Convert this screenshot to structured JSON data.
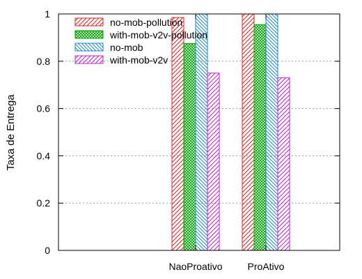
{
  "chart_data": {
    "type": "bar",
    "title": "",
    "xlabel": "",
    "ylabel": "Taxa de Entrega",
    "ylim": [
      0,
      1
    ],
    "yticks": [
      "0",
      "0.2",
      "0.4",
      "0.6",
      "0.8",
      "1"
    ],
    "categories": [
      "NaoProativo",
      "ProAtivo"
    ],
    "grid": true,
    "legend_position": "top-left",
    "series": [
      {
        "name": "no-mob-pollution",
        "values": [
          0.985,
          1.0
        ],
        "color": "#e02020",
        "pattern": "hatch-forward"
      },
      {
        "name": "with-mob-v2v-pollution",
        "values": [
          0.875,
          0.955
        ],
        "color": "#00a000",
        "pattern": "crosshatch"
      },
      {
        "name": "no-mob",
        "values": [
          1.0,
          1.0
        ],
        "color": "#1a8ac0",
        "pattern": "hatch-back"
      },
      {
        "name": "with-mob-v2v",
        "values": [
          0.75,
          0.73
        ],
        "color": "#c020d0",
        "pattern": "hatch-forward"
      }
    ]
  }
}
